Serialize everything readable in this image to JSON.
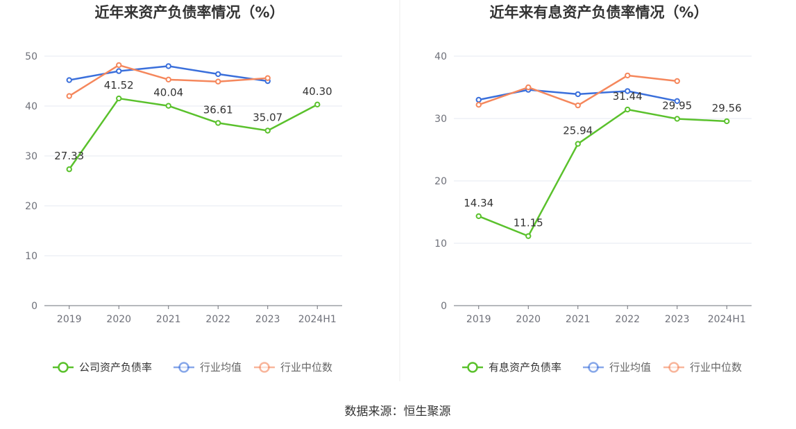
{
  "chart_data": [
    {
      "type": "line",
      "title": "近年来资产负债率情况（%）",
      "categories": [
        "2019",
        "2020",
        "2021",
        "2022",
        "2023",
        "2024H1"
      ],
      "ylim": [
        0,
        50
      ],
      "yticks": [
        0,
        10,
        20,
        30,
        40,
        50
      ],
      "series": [
        {
          "name": "公司资产负债率",
          "color": "#5ac12c",
          "labeled": true,
          "values": [
            27.33,
            41.52,
            40.04,
            36.61,
            35.07,
            40.3
          ],
          "labels": [
            "27.33",
            "41.52",
            "40.04",
            "36.61",
            "35.07",
            "40.30"
          ]
        },
        {
          "name": "行业均值",
          "color": "#3a6fdb",
          "labeled": false,
          "values": [
            45.2,
            47.0,
            48.0,
            46.4,
            45.0,
            null
          ]
        },
        {
          "name": "行业中位数",
          "color": "#f5875c",
          "labeled": false,
          "values": [
            42.0,
            48.2,
            45.3,
            44.9,
            45.6,
            null
          ]
        }
      ],
      "legend": "bottom-center"
    },
    {
      "type": "line",
      "title": "近年来有息资产负债率情况（%）",
      "categories": [
        "2019",
        "2020",
        "2021",
        "2022",
        "2023",
        "2024H1"
      ],
      "ylim": [
        0,
        40
      ],
      "yticks": [
        0,
        10,
        20,
        30,
        40
      ],
      "series": [
        {
          "name": "有息资产负债率",
          "color": "#5ac12c",
          "labeled": true,
          "values": [
            14.34,
            11.15,
            25.94,
            31.44,
            29.95,
            29.56
          ],
          "labels": [
            "14.34",
            "11.15",
            "25.94",
            "31.44",
            "29.95",
            "29.56"
          ]
        },
        {
          "name": "行业均值",
          "color": "#3a6fdb",
          "labeled": false,
          "values": [
            33.0,
            34.6,
            33.9,
            34.4,
            32.8,
            null
          ]
        },
        {
          "name": "行业中位数",
          "color": "#f5875c",
          "labeled": false,
          "values": [
            32.2,
            35.0,
            32.1,
            36.9,
            36.0,
            null
          ]
        }
      ],
      "legend": "bottom-center"
    }
  ],
  "footer": {
    "source": "数据来源：恒生聚源"
  }
}
